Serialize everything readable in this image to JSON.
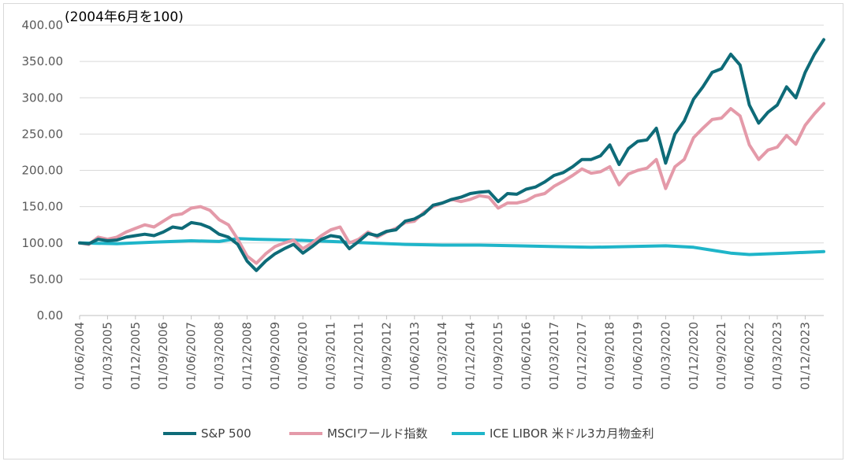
{
  "chart_data": {
    "type": "line",
    "title": "(2004年6月を100)",
    "xlabel": "",
    "ylabel": "",
    "ylim": [
      0,
      400
    ],
    "y_ticks": [
      "0.00",
      "50.00",
      "100.00",
      "150.00",
      "200.00",
      "250.00",
      "300.00",
      "350.00",
      "400.00"
    ],
    "x_ticks": [
      "01/06/2004",
      "01/03/2005",
      "01/12/2005",
      "01/09/2006",
      "01/06/2007",
      "01/03/2008",
      "01/12/2008",
      "01/09/2009",
      "01/06/2010",
      "01/03/2011",
      "01/12/2011",
      "01/09/2012",
      "01/06/2013",
      "01/03/2014",
      "01/12/2014",
      "01/09/2015",
      "01/06/2016",
      "01/03/2017",
      "01/12/2017",
      "01/09/2018",
      "01/06/2019",
      "01/03/2020",
      "01/12/2020",
      "01/09/2021",
      "01/06/2022",
      "01/03/2023",
      "01/12/2023"
    ],
    "x_range": [
      "2004-06",
      "2024-06"
    ],
    "grid": "horizontal",
    "legend_position": "bottom",
    "series": [
      {
        "name": "S&P 500",
        "color": "#0e6b78",
        "points": [
          [
            "2004-06",
            100
          ],
          [
            "2004-09",
            99
          ],
          [
            "2004-12",
            105
          ],
          [
            "2005-03",
            103
          ],
          [
            "2005-06",
            104
          ],
          [
            "2005-09",
            108
          ],
          [
            "2005-12",
            110
          ],
          [
            "2006-03",
            112
          ],
          [
            "2006-06",
            110
          ],
          [
            "2006-09",
            115
          ],
          [
            "2006-12",
            122
          ],
          [
            "2007-03",
            120
          ],
          [
            "2007-06",
            128
          ],
          [
            "2007-09",
            126
          ],
          [
            "2007-12",
            121
          ],
          [
            "2008-03",
            112
          ],
          [
            "2008-06",
            108
          ],
          [
            "2008-09",
            98
          ],
          [
            "2008-12",
            75
          ],
          [
            "2009-03",
            62
          ],
          [
            "2009-06",
            75
          ],
          [
            "2009-09",
            85
          ],
          [
            "2009-12",
            92
          ],
          [
            "2010-03",
            98
          ],
          [
            "2010-06",
            86
          ],
          [
            "2010-09",
            95
          ],
          [
            "2010-12",
            105
          ],
          [
            "2011-03",
            110
          ],
          [
            "2011-06",
            108
          ],
          [
            "2011-09",
            92
          ],
          [
            "2011-12",
            102
          ],
          [
            "2012-03",
            113
          ],
          [
            "2012-06",
            110
          ],
          [
            "2012-09",
            116
          ],
          [
            "2012-12",
            118
          ],
          [
            "2013-03",
            130
          ],
          [
            "2013-06",
            133
          ],
          [
            "2013-09",
            140
          ],
          [
            "2013-12",
            152
          ],
          [
            "2014-03",
            155
          ],
          [
            "2014-06",
            160
          ],
          [
            "2014-09",
            163
          ],
          [
            "2014-12",
            168
          ],
          [
            "2015-03",
            170
          ],
          [
            "2015-06",
            171
          ],
          [
            "2015-09",
            157
          ],
          [
            "2015-12",
            168
          ],
          [
            "2016-03",
            167
          ],
          [
            "2016-06",
            174
          ],
          [
            "2016-09",
            177
          ],
          [
            "2016-12",
            184
          ],
          [
            "2017-03",
            193
          ],
          [
            "2017-06",
            197
          ],
          [
            "2017-09",
            205
          ],
          [
            "2017-12",
            215
          ],
          [
            "2018-03",
            215
          ],
          [
            "2018-06",
            220
          ],
          [
            "2018-09",
            235
          ],
          [
            "2018-12",
            208
          ],
          [
            "2019-03",
            230
          ],
          [
            "2019-06",
            240
          ],
          [
            "2019-09",
            242
          ],
          [
            "2019-12",
            258
          ],
          [
            "2020-03",
            210
          ],
          [
            "2020-06",
            250
          ],
          [
            "2020-09",
            268
          ],
          [
            "2020-12",
            298
          ],
          [
            "2021-03",
            315
          ],
          [
            "2021-06",
            335
          ],
          [
            "2021-09",
            340
          ],
          [
            "2021-12",
            360
          ],
          [
            "2022-03",
            345
          ],
          [
            "2022-06",
            290
          ],
          [
            "2022-09",
            265
          ],
          [
            "2022-12",
            280
          ],
          [
            "2023-03",
            290
          ],
          [
            "2023-06",
            315
          ],
          [
            "2023-09",
            300
          ],
          [
            "2023-12",
            335
          ],
          [
            "2024-03",
            360
          ],
          [
            "2024-06",
            380
          ]
        ]
      },
      {
        "name": "MSCIワールド指数",
        "color": "#e49aa9",
        "points": [
          [
            "2004-06",
            100
          ],
          [
            "2004-09",
            98
          ],
          [
            "2004-12",
            108
          ],
          [
            "2005-03",
            105
          ],
          [
            "2005-06",
            108
          ],
          [
            "2005-09",
            115
          ],
          [
            "2005-12",
            120
          ],
          [
            "2006-03",
            125
          ],
          [
            "2006-06",
            122
          ],
          [
            "2006-09",
            130
          ],
          [
            "2006-12",
            138
          ],
          [
            "2007-03",
            140
          ],
          [
            "2007-06",
            148
          ],
          [
            "2007-09",
            150
          ],
          [
            "2007-12",
            145
          ],
          [
            "2008-03",
            132
          ],
          [
            "2008-06",
            125
          ],
          [
            "2008-09",
            105
          ],
          [
            "2008-12",
            82
          ],
          [
            "2009-03",
            72
          ],
          [
            "2009-06",
            85
          ],
          [
            "2009-09",
            95
          ],
          [
            "2009-12",
            100
          ],
          [
            "2010-03",
            104
          ],
          [
            "2010-06",
            92
          ],
          [
            "2010-09",
            100
          ],
          [
            "2010-12",
            110
          ],
          [
            "2011-03",
            118
          ],
          [
            "2011-06",
            122
          ],
          [
            "2011-09",
            100
          ],
          [
            "2011-12",
            105
          ],
          [
            "2012-03",
            115
          ],
          [
            "2012-06",
            108
          ],
          [
            "2012-09",
            115
          ],
          [
            "2012-12",
            120
          ],
          [
            "2013-03",
            128
          ],
          [
            "2013-06",
            130
          ],
          [
            "2013-09",
            142
          ],
          [
            "2013-12",
            150
          ],
          [
            "2014-03",
            155
          ],
          [
            "2014-06",
            160
          ],
          [
            "2014-09",
            157
          ],
          [
            "2014-12",
            160
          ],
          [
            "2015-03",
            165
          ],
          [
            "2015-06",
            163
          ],
          [
            "2015-09",
            148
          ],
          [
            "2015-12",
            155
          ],
          [
            "2016-03",
            155
          ],
          [
            "2016-06",
            158
          ],
          [
            "2016-09",
            165
          ],
          [
            "2016-12",
            168
          ],
          [
            "2017-03",
            178
          ],
          [
            "2017-06",
            185
          ],
          [
            "2017-09",
            193
          ],
          [
            "2017-12",
            202
          ],
          [
            "2018-03",
            196
          ],
          [
            "2018-06",
            198
          ],
          [
            "2018-09",
            205
          ],
          [
            "2018-12",
            180
          ],
          [
            "2019-03",
            195
          ],
          [
            "2019-06",
            200
          ],
          [
            "2019-09",
            203
          ],
          [
            "2019-12",
            215
          ],
          [
            "2020-03",
            175
          ],
          [
            "2020-06",
            205
          ],
          [
            "2020-09",
            215
          ],
          [
            "2020-12",
            245
          ],
          [
            "2021-03",
            258
          ],
          [
            "2021-06",
            270
          ],
          [
            "2021-09",
            272
          ],
          [
            "2021-12",
            285
          ],
          [
            "2022-03",
            275
          ],
          [
            "2022-06",
            235
          ],
          [
            "2022-09",
            215
          ],
          [
            "2022-12",
            228
          ],
          [
            "2023-03",
            232
          ],
          [
            "2023-06",
            248
          ],
          [
            "2023-09",
            236
          ],
          [
            "2023-12",
            262
          ],
          [
            "2024-03",
            278
          ],
          [
            "2024-06",
            292
          ]
        ]
      },
      {
        "name": "ICE LIBOR 米ドル3カ月物金利",
        "color": "#1fb5c9",
        "points": [
          [
            "2004-06",
            100
          ],
          [
            "2005-06",
            99
          ],
          [
            "2006-06",
            101
          ],
          [
            "2007-06",
            103
          ],
          [
            "2008-03",
            102
          ],
          [
            "2008-09",
            106
          ],
          [
            "2009-03",
            105
          ],
          [
            "2010-03",
            104
          ],
          [
            "2011-03",
            102
          ],
          [
            "2012-03",
            100
          ],
          [
            "2013-03",
            98
          ],
          [
            "2014-03",
            97
          ],
          [
            "2015-03",
            97
          ],
          [
            "2016-03",
            96
          ],
          [
            "2017-03",
            95
          ],
          [
            "2018-03",
            94
          ],
          [
            "2019-03",
            95
          ],
          [
            "2020-03",
            96
          ],
          [
            "2020-12",
            94
          ],
          [
            "2021-06",
            90
          ],
          [
            "2021-12",
            86
          ],
          [
            "2022-06",
            84
          ],
          [
            "2022-12",
            85
          ],
          [
            "2023-06",
            86
          ],
          [
            "2024-06",
            88
          ]
        ]
      }
    ]
  }
}
